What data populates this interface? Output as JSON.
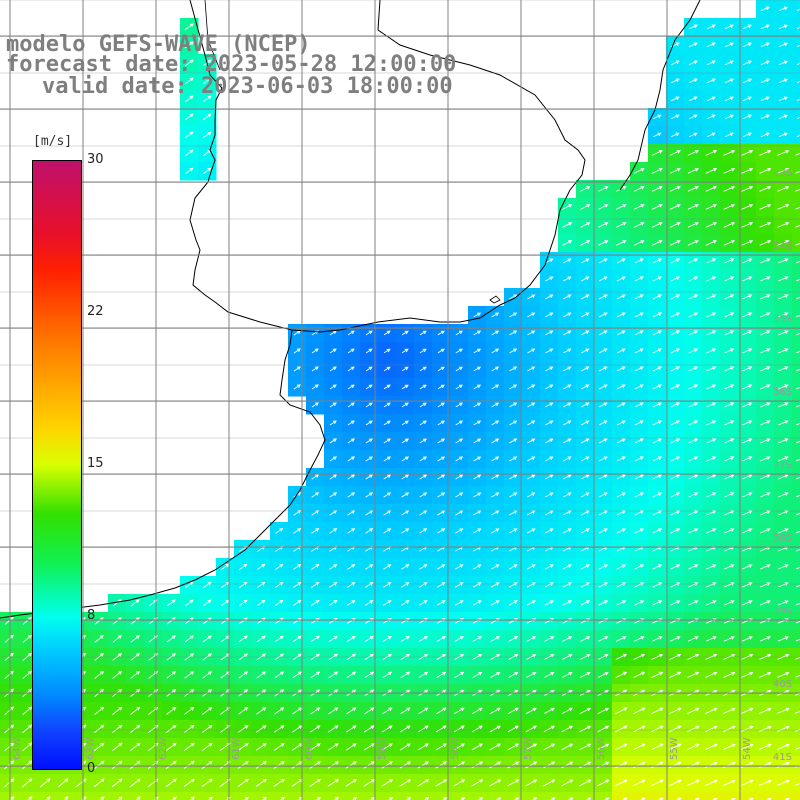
{
  "title": {
    "line1": "modelo GEFS-WAVE (NCEP)",
    "line2": "forecast date: 2023-05-28 12:00:00",
    "line3": "valid date: 2023-06-03 18:00:00"
  },
  "colorbar": {
    "unit": "[m/s]",
    "min": 0,
    "max": 30,
    "ticks": [
      "30",
      "22",
      "15",
      "8",
      "0"
    ]
  },
  "grid": {
    "latitude_labels": [
      "33S",
      "34S",
      "35S",
      "36S",
      "37S",
      "38S",
      "39S",
      "40S",
      "41S"
    ],
    "longitude_labels": [
      "64W",
      "63W",
      "62W",
      "61W",
      "60W",
      "59W",
      "58W",
      "57W",
      "56W",
      "55W",
      "54W"
    ]
  },
  "colors": {
    "land": "#ffffff",
    "coastline": "#000000",
    "gridline": "#808080",
    "arrows": "#ffffff",
    "title_text": "#7f7f7f"
  }
}
